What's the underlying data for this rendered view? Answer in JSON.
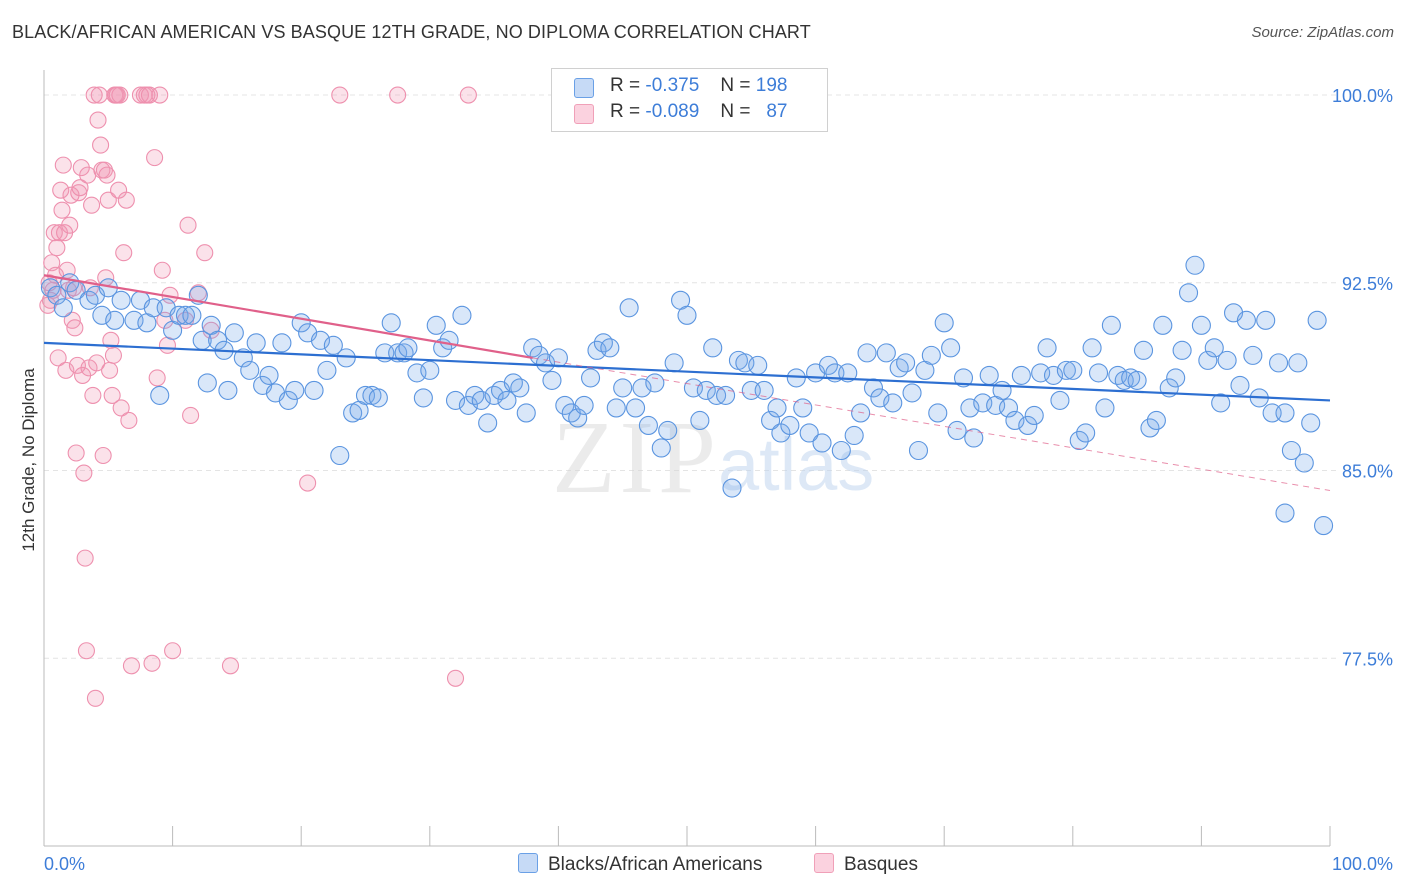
{
  "title": "BLACK/AFRICAN AMERICAN VS BASQUE 12TH GRADE, NO DIPLOMA CORRELATION CHART",
  "source": "Source: ZipAtlas.com",
  "watermark": {
    "zip": "ZIP",
    "atlas": "atlas"
  },
  "legend_top": {
    "rows": [
      {
        "r_label": "R =",
        "r_value": "-0.375",
        "n_label": "N =",
        "n_value": "198",
        "color": "#6aa0e6"
      },
      {
        "r_label": "R =",
        "r_value": "-0.089",
        "n_label": "N =",
        "n_value": "87",
        "color": "#f0a0b8"
      }
    ]
  },
  "legend_bottom": {
    "items": [
      {
        "label": "Blacks/African Americans",
        "color": "#6aa0e6"
      },
      {
        "label": "Basques",
        "color": "#f0a0b8"
      }
    ]
  },
  "colors": {
    "blue": "#5b95e0",
    "blue_line": "#2d6fd1",
    "pink": "#ee90ae",
    "pink_line": "#e0608a",
    "tick_label": "#3d7dd8",
    "grid": "#e4e4e4"
  },
  "chart_data": {
    "type": "scatter",
    "title": "BLACK/AFRICAN AMERICAN VS BASQUE 12TH GRADE, NO DIPLOMA CORRELATION CHART",
    "xlabel": "",
    "ylabel": "12th Grade, No Diploma",
    "xlim": [
      0,
      100
    ],
    "ylim": [
      70,
      101
    ],
    "x_tick_labels": [
      "0.0%",
      "100.0%"
    ],
    "y_ticks": [
      77.5,
      85.0,
      92.5,
      100.0
    ],
    "y_tick_labels": [
      "77.5%",
      "85.0%",
      "92.5%",
      "100.0%"
    ],
    "grid": true,
    "legend_position": "top-center",
    "series": [
      {
        "name": "Blacks/African Americans",
        "trend": {
          "x": [
            0,
            100
          ],
          "y": [
            90.1,
            87.8
          ]
        },
        "points": [
          [
            0.5,
            92.3
          ],
          [
            1.0,
            92.0
          ],
          [
            1.5,
            91.5
          ],
          [
            2.0,
            92.5
          ],
          [
            2.5,
            92.2
          ],
          [
            3.5,
            91.8
          ],
          [
            4.0,
            92.0
          ],
          [
            4.5,
            91.2
          ],
          [
            5.0,
            92.3
          ],
          [
            5.5,
            91.0
          ],
          [
            6.0,
            91.8
          ],
          [
            7.0,
            91.0
          ],
          [
            7.5,
            91.8
          ],
          [
            8.0,
            90.9
          ],
          [
            8.5,
            91.5
          ],
          [
            9.0,
            88.0
          ],
          [
            9.5,
            91.5
          ],
          [
            10.0,
            90.6
          ],
          [
            10.5,
            91.2
          ],
          [
            11.0,
            91.2
          ],
          [
            11.5,
            91.2
          ],
          [
            12.0,
            92.0
          ],
          [
            12.3,
            90.2
          ],
          [
            12.7,
            88.5
          ],
          [
            13.0,
            90.8
          ],
          [
            13.5,
            90.2
          ],
          [
            14.0,
            89.8
          ],
          [
            14.3,
            88.2
          ],
          [
            14.8,
            90.5
          ],
          [
            15.5,
            89.5
          ],
          [
            16.0,
            89.0
          ],
          [
            16.5,
            90.1
          ],
          [
            17.0,
            88.4
          ],
          [
            17.5,
            88.8
          ],
          [
            18.0,
            88.1
          ],
          [
            18.5,
            90.1
          ],
          [
            19.0,
            87.8
          ],
          [
            19.5,
            88.2
          ],
          [
            20.0,
            90.9
          ],
          [
            20.5,
            90.5
          ],
          [
            21.0,
            88.2
          ],
          [
            21.5,
            90.2
          ],
          [
            22.0,
            89.0
          ],
          [
            22.5,
            90.0
          ],
          [
            23.0,
            85.6
          ],
          [
            23.5,
            89.5
          ],
          [
            24.0,
            87.3
          ],
          [
            24.5,
            87.4
          ],
          [
            25.0,
            88.0
          ],
          [
            25.5,
            88.0
          ],
          [
            26.0,
            87.9
          ],
          [
            26.5,
            89.7
          ],
          [
            27.0,
            90.9
          ],
          [
            27.5,
            89.7
          ],
          [
            28.0,
            89.7
          ],
          [
            28.3,
            89.9
          ],
          [
            29.0,
            88.9
          ],
          [
            29.5,
            87.9
          ],
          [
            30.0,
            89.0
          ],
          [
            30.5,
            90.8
          ],
          [
            31.0,
            89.9
          ],
          [
            31.5,
            90.2
          ],
          [
            32.0,
            87.8
          ],
          [
            32.5,
            91.2
          ],
          [
            33.0,
            87.6
          ],
          [
            33.5,
            88.0
          ],
          [
            34.0,
            87.8
          ],
          [
            34.5,
            86.9
          ],
          [
            35.0,
            88.0
          ],
          [
            35.5,
            88.2
          ],
          [
            36.0,
            87.8
          ],
          [
            36.5,
            88.5
          ],
          [
            37.0,
            88.3
          ],
          [
            37.5,
            87.3
          ],
          [
            38.0,
            89.9
          ],
          [
            38.5,
            89.6
          ],
          [
            39.0,
            89.3
          ],
          [
            39.5,
            88.6
          ],
          [
            40.0,
            89.5
          ],
          [
            40.5,
            87.6
          ],
          [
            41.0,
            87.3
          ],
          [
            41.5,
            87.1
          ],
          [
            42.0,
            87.6
          ],
          [
            42.5,
            88.7
          ],
          [
            43.0,
            89.8
          ],
          [
            43.5,
            90.1
          ],
          [
            44.0,
            89.9
          ],
          [
            44.5,
            87.5
          ],
          [
            45.0,
            88.3
          ],
          [
            45.5,
            91.5
          ],
          [
            46.0,
            87.5
          ],
          [
            46.5,
            88.3
          ],
          [
            47.0,
            86.8
          ],
          [
            47.5,
            88.5
          ],
          [
            48.0,
            85.9
          ],
          [
            48.5,
            86.6
          ],
          [
            49.0,
            89.3
          ],
          [
            49.5,
            91.8
          ],
          [
            50.0,
            91.2
          ],
          [
            50.5,
            88.3
          ],
          [
            51.0,
            87.0
          ],
          [
            51.5,
            88.2
          ],
          [
            52.0,
            89.9
          ],
          [
            52.3,
            88.0
          ],
          [
            53.0,
            88.0
          ],
          [
            53.5,
            84.3
          ],
          [
            54.0,
            89.4
          ],
          [
            54.5,
            89.3
          ],
          [
            55.0,
            88.2
          ],
          [
            55.5,
            89.2
          ],
          [
            56.0,
            88.2
          ],
          [
            56.5,
            87.0
          ],
          [
            57.0,
            87.5
          ],
          [
            57.3,
            86.5
          ],
          [
            58.0,
            86.8
          ],
          [
            58.5,
            88.7
          ],
          [
            59.0,
            87.5
          ],
          [
            59.5,
            86.5
          ],
          [
            60.0,
            88.9
          ],
          [
            60.5,
            86.1
          ],
          [
            61.0,
            89.2
          ],
          [
            61.5,
            88.9
          ],
          [
            62.0,
            85.8
          ],
          [
            62.5,
            88.9
          ],
          [
            63.0,
            86.4
          ],
          [
            63.5,
            87.3
          ],
          [
            64.0,
            89.7
          ],
          [
            64.5,
            88.3
          ],
          [
            65.0,
            87.9
          ],
          [
            65.5,
            89.7
          ],
          [
            66.0,
            87.7
          ],
          [
            66.5,
            89.1
          ],
          [
            67.0,
            89.3
          ],
          [
            67.5,
            88.1
          ],
          [
            68.0,
            85.8
          ],
          [
            68.5,
            89.0
          ],
          [
            69.0,
            89.6
          ],
          [
            69.5,
            87.3
          ],
          [
            70.0,
            90.9
          ],
          [
            70.5,
            89.9
          ],
          [
            71.0,
            86.6
          ],
          [
            71.5,
            88.7
          ],
          [
            72.0,
            87.5
          ],
          [
            72.3,
            86.3
          ],
          [
            73.0,
            87.7
          ],
          [
            73.5,
            88.8
          ],
          [
            74.0,
            87.6
          ],
          [
            74.5,
            88.2
          ],
          [
            75.0,
            87.5
          ],
          [
            75.5,
            87.0
          ],
          [
            76.0,
            88.8
          ],
          [
            76.5,
            86.8
          ],
          [
            77.0,
            87.2
          ],
          [
            77.5,
            88.9
          ],
          [
            78.0,
            89.9
          ],
          [
            78.5,
            88.8
          ],
          [
            79.0,
            87.8
          ],
          [
            79.5,
            89.0
          ],
          [
            80.0,
            89.0
          ],
          [
            80.5,
            86.2
          ],
          [
            81.0,
            86.5
          ],
          [
            81.5,
            89.9
          ],
          [
            82.0,
            88.9
          ],
          [
            82.5,
            87.5
          ],
          [
            83.0,
            90.8
          ],
          [
            83.5,
            88.8
          ],
          [
            84.0,
            88.6
          ],
          [
            84.5,
            88.7
          ],
          [
            85.0,
            88.6
          ],
          [
            85.5,
            89.8
          ],
          [
            86.0,
            86.7
          ],
          [
            86.5,
            87.0
          ],
          [
            87.0,
            90.8
          ],
          [
            87.5,
            88.3
          ],
          [
            88.0,
            88.7
          ],
          [
            88.5,
            89.8
          ],
          [
            89.0,
            92.1
          ],
          [
            89.5,
            93.2
          ],
          [
            90.0,
            90.8
          ],
          [
            90.5,
            89.4
          ],
          [
            91.0,
            89.9
          ],
          [
            91.5,
            87.7
          ],
          [
            92.0,
            89.4
          ],
          [
            92.5,
            91.3
          ],
          [
            93.0,
            88.4
          ],
          [
            93.5,
            91.0
          ],
          [
            94.0,
            89.6
          ],
          [
            94.5,
            87.9
          ],
          [
            95.0,
            91.0
          ],
          [
            95.5,
            87.3
          ],
          [
            96.0,
            89.3
          ],
          [
            96.5,
            87.3
          ],
          [
            97.0,
            85.8
          ],
          [
            97.5,
            89.3
          ],
          [
            98.0,
            85.3
          ],
          [
            98.5,
            86.9
          ],
          [
            99.0,
            91.0
          ],
          [
            99.5,
            82.8
          ],
          [
            96.5,
            83.3
          ]
        ]
      },
      {
        "name": "Basques",
        "trend": {
          "x": [
            0,
            38
          ],
          "y": [
            92.8,
            89.5
          ]
        },
        "trend_extension": {
          "x": [
            38,
            100
          ],
          "y": [
            89.5,
            84.2
          ]
        },
        "points": [
          [
            0.5,
            91.8
          ],
          [
            0.6,
            93.3
          ],
          [
            0.7,
            92.2
          ],
          [
            0.8,
            94.5
          ],
          [
            0.9,
            92.8
          ],
          [
            1.0,
            93.9
          ],
          [
            1.1,
            89.5
          ],
          [
            1.2,
            94.5
          ],
          [
            1.3,
            96.2
          ],
          [
            1.4,
            95.4
          ],
          [
            1.5,
            97.2
          ],
          [
            1.6,
            94.5
          ],
          [
            1.7,
            89.0
          ],
          [
            1.8,
            93.0
          ],
          [
            1.9,
            92.2
          ],
          [
            2.0,
            94.8
          ],
          [
            2.1,
            96.0
          ],
          [
            2.2,
            91.0
          ],
          [
            2.3,
            92.3
          ],
          [
            2.4,
            90.7
          ],
          [
            2.5,
            85.7
          ],
          [
            2.6,
            89.2
          ],
          [
            2.7,
            96.1
          ],
          [
            2.8,
            96.3
          ],
          [
            2.9,
            97.1
          ],
          [
            3.0,
            88.8
          ],
          [
            3.1,
            84.9
          ],
          [
            3.2,
            81.5
          ],
          [
            3.3,
            77.8
          ],
          [
            3.4,
            96.8
          ],
          [
            3.5,
            89.1
          ],
          [
            3.6,
            92.3
          ],
          [
            3.7,
            95.6
          ],
          [
            3.8,
            88.0
          ],
          [
            3.9,
            100.0
          ],
          [
            4.0,
            75.9
          ],
          [
            4.1,
            89.3
          ],
          [
            4.2,
            99.0
          ],
          [
            4.3,
            100.0
          ],
          [
            4.4,
            98.0
          ],
          [
            4.5,
            97.0
          ],
          [
            4.6,
            85.6
          ],
          [
            4.7,
            97.0
          ],
          [
            4.8,
            92.7
          ],
          [
            4.9,
            96.8
          ],
          [
            5.0,
            95.8
          ],
          [
            5.1,
            89.0
          ],
          [
            5.2,
            90.2
          ],
          [
            5.3,
            88.0
          ],
          [
            5.4,
            89.6
          ],
          [
            5.5,
            100.0
          ],
          [
            5.6,
            100.0
          ],
          [
            5.7,
            100.0
          ],
          [
            5.8,
            96.2
          ],
          [
            5.9,
            100.0
          ],
          [
            6.0,
            87.5
          ],
          [
            6.2,
            93.7
          ],
          [
            6.4,
            95.8
          ],
          [
            6.6,
            87.0
          ],
          [
            6.8,
            77.2
          ],
          [
            7.5,
            100.0
          ],
          [
            7.8,
            100.0
          ],
          [
            8.0,
            100.0
          ],
          [
            8.2,
            100.0
          ],
          [
            8.4,
            77.3
          ],
          [
            8.6,
            97.5
          ],
          [
            8.8,
            88.7
          ],
          [
            9.0,
            100.0
          ],
          [
            9.2,
            93.0
          ],
          [
            9.4,
            91.0
          ],
          [
            9.6,
            90.0
          ],
          [
            9.8,
            92.0
          ],
          [
            10.0,
            77.8
          ],
          [
            11.0,
            91.0
          ],
          [
            11.2,
            94.8
          ],
          [
            11.4,
            87.2
          ],
          [
            12.0,
            92.1
          ],
          [
            12.5,
            93.7
          ],
          [
            13.0,
            90.6
          ],
          [
            14.5,
            77.2
          ],
          [
            20.5,
            84.5
          ],
          [
            23.0,
            100.0
          ],
          [
            27.5,
            100.0
          ],
          [
            32.0,
            76.7
          ],
          [
            33.0,
            100.0
          ],
          [
            0.4,
            92.5
          ],
          [
            0.3,
            91.6
          ]
        ]
      }
    ]
  }
}
